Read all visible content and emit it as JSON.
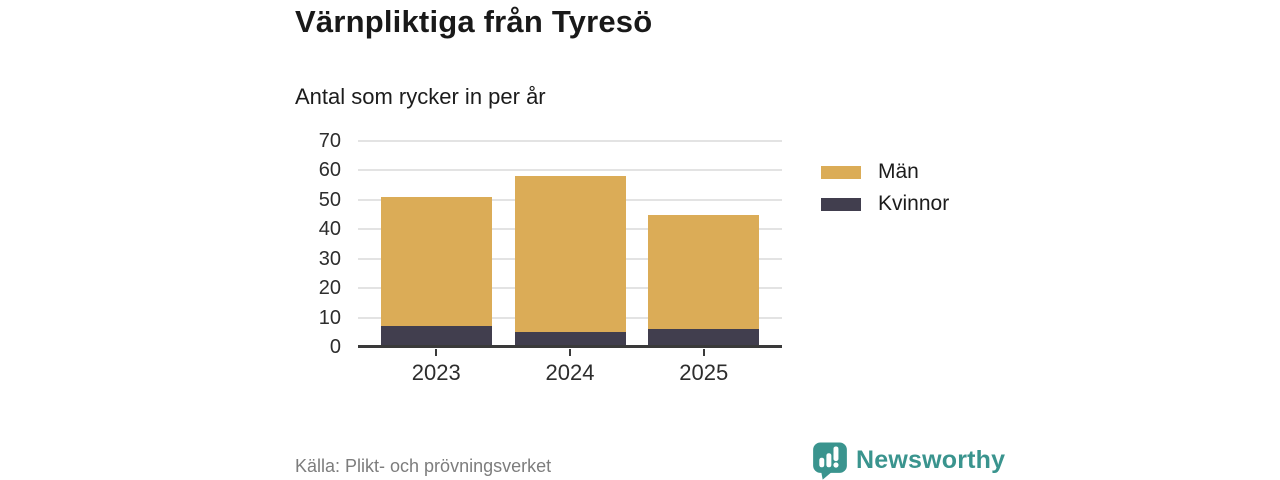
{
  "header": {
    "title": "Värnpliktiga från Tyresö",
    "subtitle": "Antal som rycker in per år"
  },
  "chart_data": {
    "type": "bar",
    "stacked": true,
    "title": "Värnpliktiga från Tyresö",
    "subtitle": "Antal som rycker in per år",
    "categories": [
      "2023",
      "2024",
      "2025"
    ],
    "series": [
      {
        "name": "Män",
        "color": "#DBAC57",
        "values": [
          44,
          53,
          39
        ]
      },
      {
        "name": "Kvinnor",
        "color": "#413E4E",
        "values": [
          7,
          5,
          6
        ]
      }
    ],
    "totals": [
      51,
      58,
      45
    ],
    "xlabel": "",
    "ylabel": "",
    "ylim": [
      0,
      70
    ],
    "yticks": [
      0,
      10,
      20,
      30,
      40,
      50,
      60,
      70
    ],
    "grid": "horizontal",
    "legend_position": "right"
  },
  "footer": {
    "source": "Källa: Plikt- och prövningsverket",
    "brand": "Newsworthy",
    "brand_color": "#3A948E"
  }
}
